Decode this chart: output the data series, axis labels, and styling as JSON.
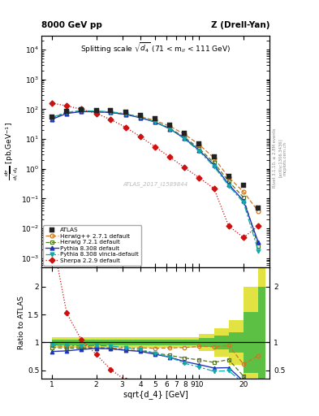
{
  "title_top_left": "8000 GeV pp",
  "title_top_right": "Z (Drell-Yan)",
  "plot_title": "Splitting scale $\\sqrt{d_4}$ (71 < m$_{ll}$ < 111 GeV)",
  "ylabel_main": "d$\\sigma$/dsqrt($d_4$) [pb,GeV$^{-1}$]",
  "ylabel_ratio": "Ratio to ATLAS",
  "xlabel": "sqrt{d_4} [GeV]",
  "watermark": "ATLAS_2017_I1589844",
  "atlas_x": [
    1.0,
    1.26,
    1.58,
    2.0,
    2.51,
    3.16,
    3.98,
    5.01,
    6.31,
    7.94,
    10.0,
    12.59,
    15.85,
    19.95,
    25.12
  ],
  "atlas_y": [
    55.0,
    85.0,
    95.0,
    92.0,
    88.0,
    78.0,
    62.0,
    47.0,
    30.0,
    16.0,
    7.0,
    2.5,
    0.55,
    0.28,
    0.05
  ],
  "herwig271_y": [
    52.0,
    78.0,
    87.0,
    84.0,
    79.0,
    69.0,
    56.0,
    42.0,
    27.0,
    14.5,
    6.5,
    2.3,
    0.52,
    0.17,
    0.038
  ],
  "herwig721_y": [
    50.0,
    76.0,
    85.0,
    82.0,
    78.0,
    67.0,
    53.0,
    38.0,
    23.0,
    11.5,
    4.8,
    1.6,
    0.38,
    0.11,
    0.0025
  ],
  "pythia8_y": [
    46.0,
    72.0,
    83.0,
    82.0,
    78.0,
    67.0,
    52.0,
    37.0,
    22.0,
    10.5,
    4.2,
    1.35,
    0.3,
    0.085,
    0.0035
  ],
  "pythia8v_y": [
    53.0,
    80.0,
    89.0,
    87.0,
    82.0,
    71.0,
    54.0,
    38.0,
    22.0,
    10.0,
    3.9,
    1.2,
    0.27,
    0.075,
    0.0018
  ],
  "sherpa_y": [
    160.0,
    130.0,
    100.0,
    72.0,
    45.0,
    25.0,
    12.0,
    5.5,
    2.5,
    1.1,
    0.5,
    0.22,
    0.012,
    0.005,
    0.012
  ],
  "herwig271_color": "#cc7722",
  "herwig721_color": "#557722",
  "pythia8_color": "#2233bb",
  "pythia8v_color": "#11aaaa",
  "sherpa_color": "#cc1111",
  "atlas_color": "#222222",
  "inner_band_color": "#44bb44",
  "outer_band_color": "#dddd22",
  "inner_err": [
    0.05,
    0.05,
    0.05,
    0.05,
    0.05,
    0.05,
    0.05,
    0.05,
    0.05,
    0.05,
    0.08,
    0.12,
    0.18,
    0.55,
    1.0
  ],
  "outer_err": [
    0.1,
    0.1,
    0.1,
    0.1,
    0.1,
    0.1,
    0.1,
    0.1,
    0.1,
    0.1,
    0.15,
    0.25,
    0.4,
    1.0,
    1.5
  ],
  "xlim": [
    0.85,
    30.0
  ],
  "ylim_main": [
    0.0005,
    30000.0
  ],
  "ylim_ratio": [
    0.35,
    2.35
  ],
  "yticks_ratio": [
    0.5,
    1.0,
    1.5,
    2.0
  ]
}
